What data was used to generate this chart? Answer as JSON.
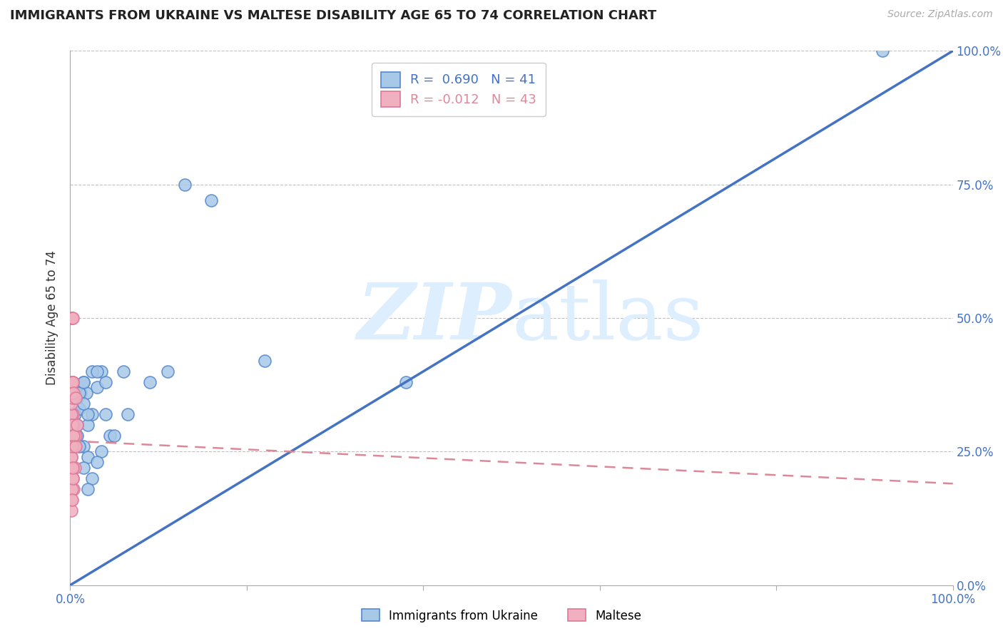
{
  "title": "IMMIGRANTS FROM UKRAINE VS MALTESE DISABILITY AGE 65 TO 74 CORRELATION CHART",
  "source": "Source: ZipAtlas.com",
  "ylabel": "Disability Age 65 to 74",
  "xlim": [
    0,
    1.0
  ],
  "ylim": [
    0,
    1.0
  ],
  "ytick_labels": [
    "0.0%",
    "25.0%",
    "50.0%",
    "75.0%",
    "100.0%"
  ],
  "ytick_values": [
    0.0,
    0.25,
    0.5,
    0.75,
    1.0
  ],
  "grid_color": "#bbbbbb",
  "background_color": "#ffffff",
  "ukraine_color": "#a8c8e8",
  "ukraine_edge_color": "#5588cc",
  "ukraine_line_color": "#4472c4",
  "maltese_color": "#f0b0c0",
  "maltese_edge_color": "#dd7799",
  "maltese_line_color": "#dd8899",
  "watermark_color": "#ddeeff",
  "legend_text_ukraine": "R =  0.690   N = 41",
  "legend_text_maltese": "R = -0.012   N = 43",
  "ukraine_R_color": "#4472c4",
  "maltese_R_color": "#dd8899",
  "ukraine_scatter_x": [
    0.005,
    0.008,
    0.01,
    0.012,
    0.015,
    0.018,
    0.02,
    0.025,
    0.03,
    0.035,
    0.005,
    0.008,
    0.01,
    0.015,
    0.02,
    0.015,
    0.025,
    0.035,
    0.04,
    0.06,
    0.008,
    0.015,
    0.02,
    0.025,
    0.03,
    0.045,
    0.005,
    0.01,
    0.015,
    0.02,
    0.03,
    0.04,
    0.05,
    0.065,
    0.09,
    0.11,
    0.13,
    0.16,
    0.22,
    0.38,
    0.92
  ],
  "ukraine_scatter_y": [
    0.32,
    0.35,
    0.33,
    0.36,
    0.38,
    0.36,
    0.3,
    0.32,
    0.37,
    0.4,
    0.28,
    0.3,
    0.36,
    0.38,
    0.32,
    0.34,
    0.4,
    0.25,
    0.38,
    0.4,
    0.28,
    0.26,
    0.24,
    0.2,
    0.23,
    0.28,
    0.28,
    0.26,
    0.22,
    0.18,
    0.4,
    0.32,
    0.28,
    0.32,
    0.38,
    0.4,
    0.75,
    0.72,
    0.42,
    0.38,
    1.0
  ],
  "maltese_scatter_x": [
    0.001,
    0.002,
    0.002,
    0.003,
    0.003,
    0.004,
    0.004,
    0.005,
    0.005,
    0.006,
    0.001,
    0.002,
    0.003,
    0.004,
    0.005,
    0.002,
    0.003,
    0.001,
    0.002,
    0.003,
    0.001,
    0.001,
    0.002,
    0.003,
    0.001,
    0.002,
    0.002,
    0.003,
    0.004,
    0.006,
    0.001,
    0.001,
    0.002,
    0.003,
    0.004,
    0.006,
    0.008,
    0.001,
    0.001,
    0.002,
    0.002,
    0.003,
    0.003
  ],
  "maltese_scatter_y": [
    0.28,
    0.3,
    0.26,
    0.32,
    0.28,
    0.3,
    0.26,
    0.28,
    0.22,
    0.28,
    0.24,
    0.22,
    0.2,
    0.18,
    0.26,
    0.36,
    0.38,
    0.5,
    0.5,
    0.5,
    0.32,
    0.34,
    0.3,
    0.35,
    0.24,
    0.26,
    0.3,
    0.28,
    0.28,
    0.26,
    0.36,
    0.38,
    0.38,
    0.38,
    0.36,
    0.35,
    0.3,
    0.16,
    0.14,
    0.18,
    0.16,
    0.2,
    0.22
  ],
  "ukraine_line_x": [
    0.0,
    1.0
  ],
  "ukraine_line_y": [
    0.0,
    1.0
  ],
  "maltese_line_x": [
    0.0,
    1.0
  ],
  "maltese_line_y": [
    0.27,
    0.19
  ],
  "bottom_legend_labels": [
    "Immigrants from Ukraine",
    "Maltese"
  ]
}
